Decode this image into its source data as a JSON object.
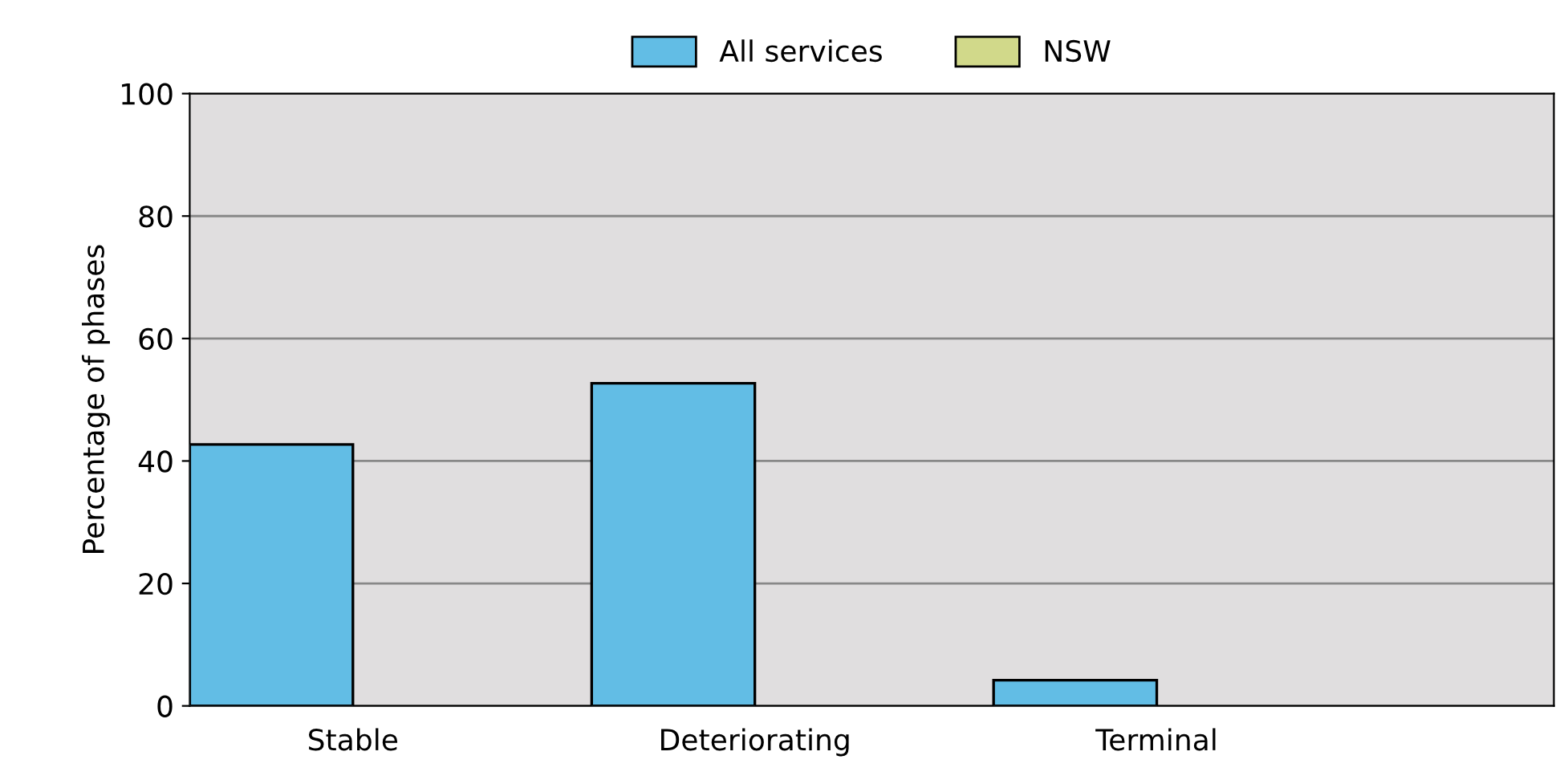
{
  "chart_data": {
    "type": "bar",
    "ylabel": "Percentage of phases",
    "categories": [
      "Stable",
      "Deteriorating",
      "Terminal"
    ],
    "series": [
      {
        "name": "All services",
        "color": "#62bde5",
        "values": [
          42.7,
          52.7,
          4.2
        ]
      },
      {
        "name": "NSW",
        "color": "#d1d98a",
        "values": [
          null,
          null,
          null
        ]
      }
    ],
    "ylim": [
      0,
      100
    ],
    "yticks": [
      0,
      20,
      40,
      60,
      80,
      100
    ],
    "grid": "y",
    "legend": "top"
  }
}
